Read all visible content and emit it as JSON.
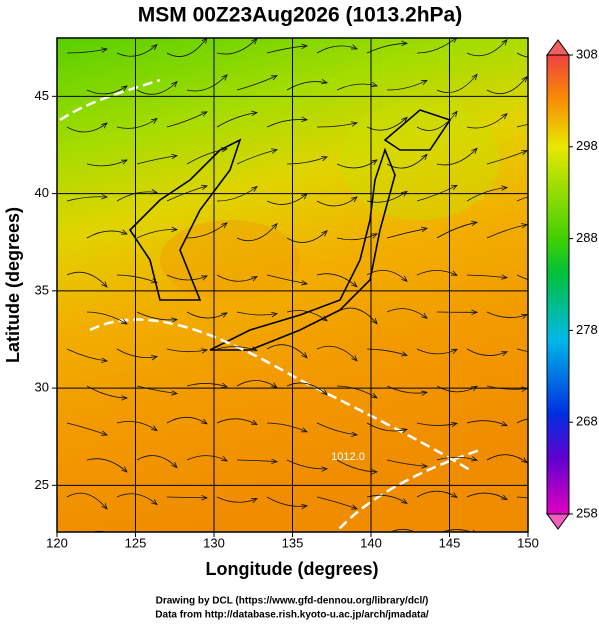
{
  "map": {
    "title": "MSM 00Z23Aug2026 (1013.2hPa)",
    "xaxis_label": "Longitude (degrees)",
    "yaxis_label": "Latitude  (degrees)",
    "xlim": [
      120,
      150
    ],
    "ylim": [
      22.6,
      48
    ],
    "xticks": [
      120,
      125,
      130,
      135,
      140,
      145,
      150
    ],
    "yticks": [
      25,
      30,
      35,
      40,
      45
    ],
    "grid": true,
    "colorbar": {
      "clim": [
        258,
        308
      ],
      "ticks": [
        258,
        268,
        278,
        288,
        298,
        308
      ]
    },
    "contour_labels": [
      "1012.0"
    ],
    "footer": [
      "Drawing by DCL (https://www.gfd-dennou.org/library/dcl/)",
      "Data from http://database.rish.kyoto-u.ac.jp/arch/jmadata/"
    ]
  }
}
